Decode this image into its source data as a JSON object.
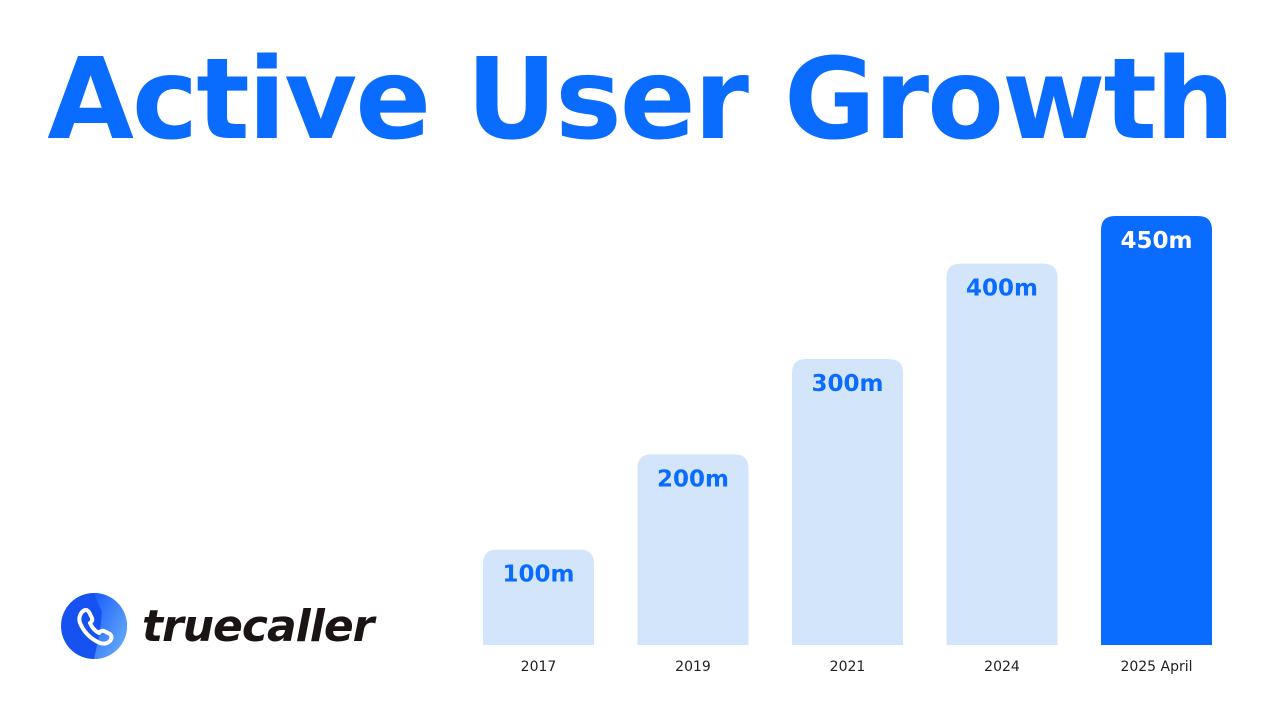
{
  "colors": {
    "accent": "#0A6CFF",
    "bar_light": "#D3E5FB",
    "title": "#0A6CFF"
  },
  "logo": {
    "text": "truecaller",
    "icon": "phone-icon"
  },
  "chart_data": {
    "type": "bar",
    "title": "Active User Growth",
    "categories": [
      "2017",
      "2019",
      "2021",
      "2024",
      "2025 April"
    ],
    "values": [
      100,
      200,
      300,
      400,
      450
    ],
    "data_labels": [
      "100m",
      "200m",
      "300m",
      "400m",
      "450m"
    ],
    "unit": "m",
    "highlight_index": 4,
    "ylim": [
      0,
      450
    ],
    "grid": false,
    "legend": "none"
  }
}
